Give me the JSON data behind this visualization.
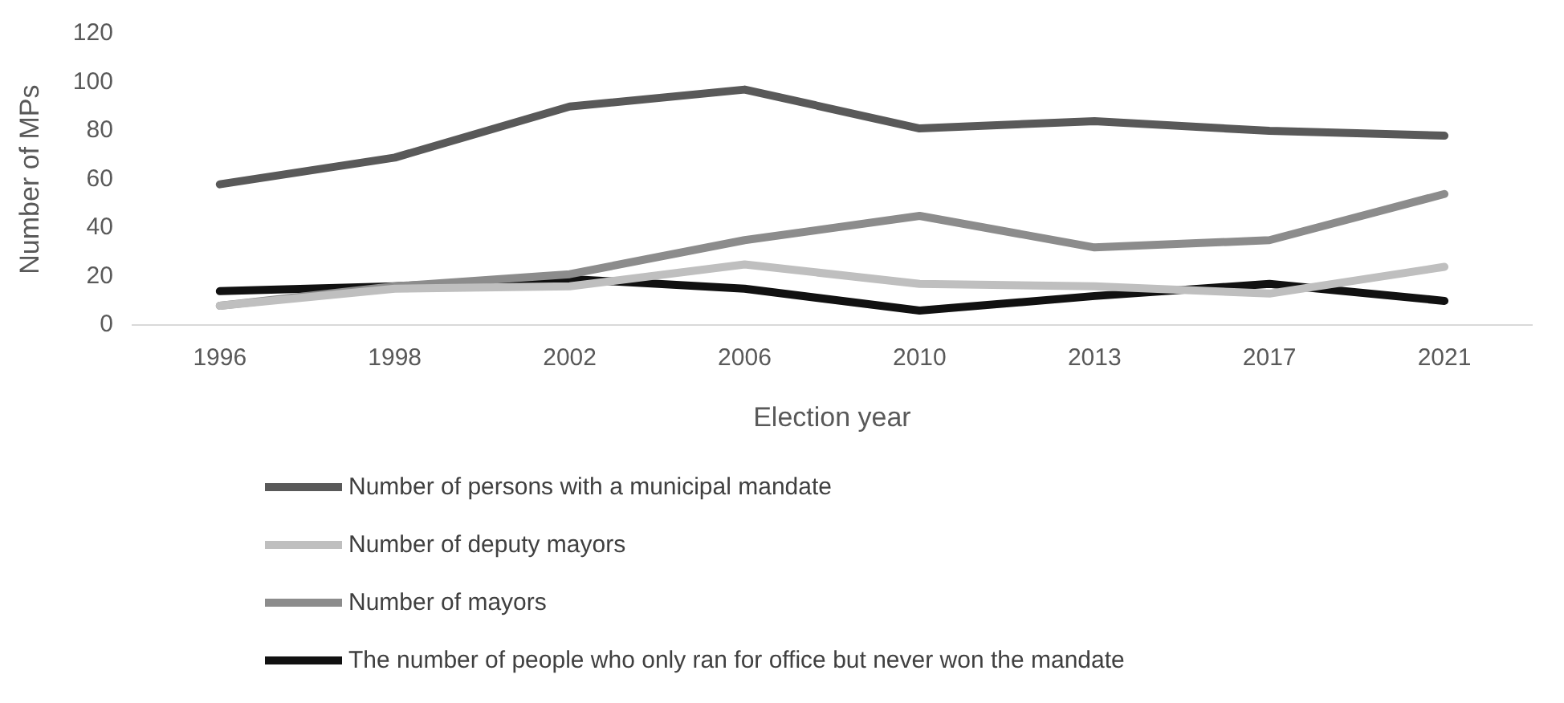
{
  "chart_data": {
    "type": "line",
    "xlabel": "Election year",
    "ylabel": "Number of MPs",
    "categories": [
      "1996",
      "1998",
      "2002",
      "2006",
      "2010",
      "2013",
      "2017",
      "2021"
    ],
    "ylim": [
      0,
      120
    ],
    "yticks": [
      0,
      20,
      40,
      60,
      80,
      100,
      120
    ],
    "grid": false,
    "legend": "bottom",
    "marker": "none",
    "line_style": "solid",
    "series": [
      {
        "name": "Number of persons with a municipal mandate",
        "color": "#595959",
        "values": [
          58,
          69,
          90,
          97,
          81,
          84,
          80,
          78
        ]
      },
      {
        "name": "Number of deputy mayors",
        "color": "#bfbfbf",
        "values": [
          8,
          15,
          16,
          25,
          17,
          16,
          13,
          24
        ]
      },
      {
        "name": "Number of mayors",
        "color": "#8c8c8c",
        "values": [
          8,
          16,
          21,
          35,
          45,
          32,
          35,
          54
        ]
      },
      {
        "name": "The number of people who only ran for office but never won the mandate",
        "color": "#111111",
        "values": [
          14,
          16,
          19,
          15,
          6,
          12,
          17,
          10
        ]
      }
    ]
  }
}
